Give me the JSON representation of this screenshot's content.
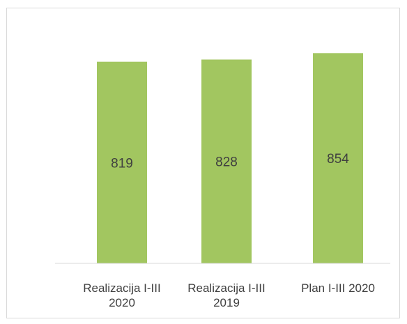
{
  "chart_data": {
    "type": "bar",
    "categories": [
      [
        "Realizacija I-III",
        "2020"
      ],
      [
        "Realizacija I-III",
        "2019"
      ],
      [
        "Plan I-III 2020"
      ]
    ],
    "values": [
      819,
      828,
      854
    ],
    "data_labels": [
      "819",
      "828",
      "854"
    ],
    "title": "",
    "xlabel": "",
    "ylabel": "",
    "ylim": [
      0,
      900
    ],
    "grid": false,
    "legend": "none",
    "bar_color": "#a2c660",
    "axis_color": "#d9d9d9",
    "label_color": "#404040"
  }
}
